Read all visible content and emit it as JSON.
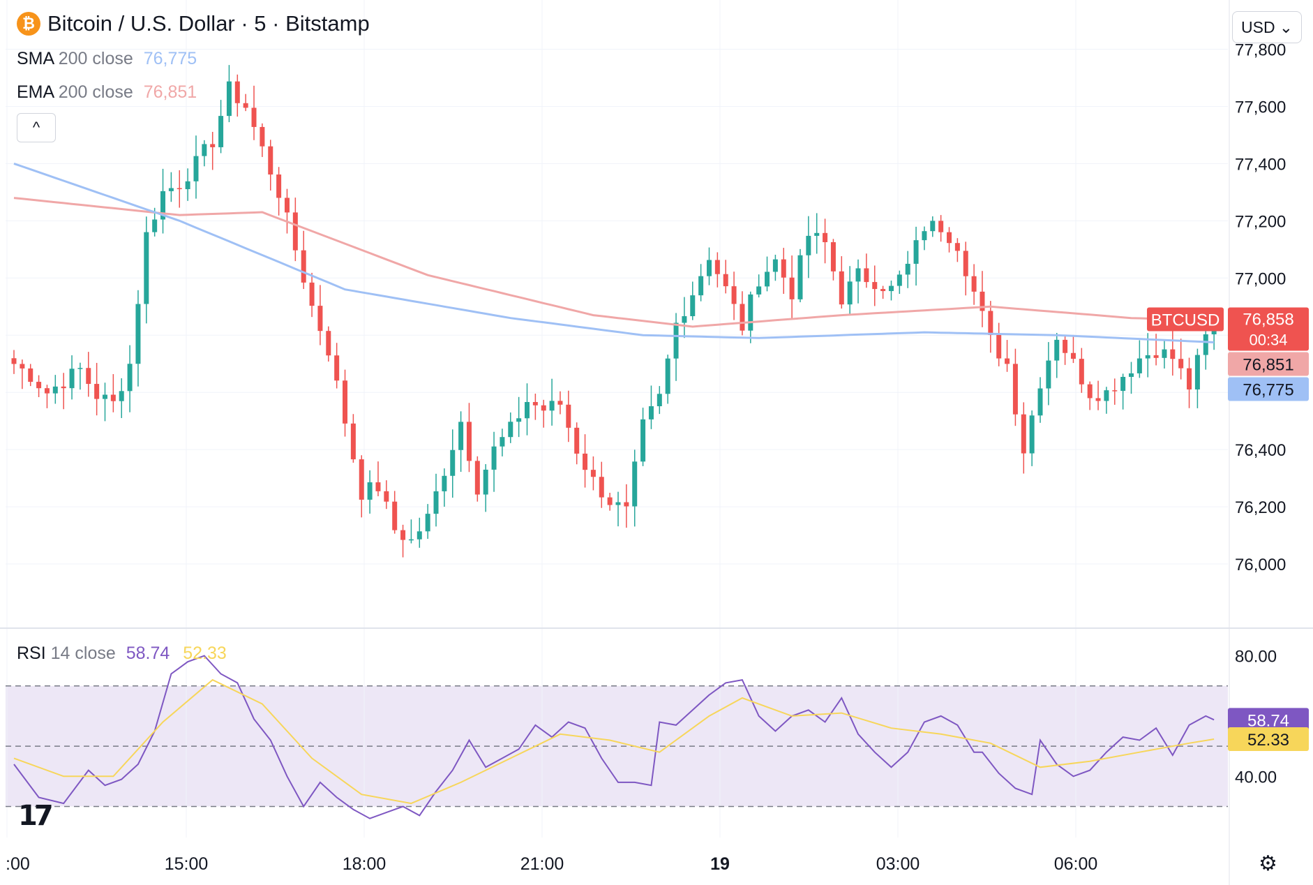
{
  "header": {
    "title": "Bitcoin / U.S. Dollar · 5 · Bitstamp",
    "coin_symbol": "₿",
    "currency": "USD",
    "currency_caret": "⌄"
  },
  "indicators": {
    "sma": {
      "label": "SMA",
      "params": "200 close",
      "value": "76,775"
    },
    "ema": {
      "label": "EMA",
      "params": "200 close",
      "value": "76,851"
    },
    "rsi": {
      "label": "RSI",
      "params": "14 close",
      "value": "58.74",
      "ma_value": "52.33"
    },
    "collapse_icon": "^"
  },
  "colors": {
    "up": "#26a69a",
    "down": "#ef5350",
    "sma": "#9fc0f5",
    "ema": "#f0a7a7",
    "rsi": "#7e57c2",
    "rsi_ma": "#f7d65a",
    "rsi_band": "#ede7f6"
  },
  "badges": {
    "symbol": "BTCUSD",
    "price": "76,858",
    "countdown": "00:34",
    "ema": "76,851",
    "sma": "76,775",
    "rsi": "58.74",
    "rsi_ma": "52.33"
  },
  "chart_data": [
    {
      "type": "candlestick",
      "title": "Bitcoin / U.S. Dollar · 5 · Bitstamp",
      "ylim": [
        75800,
        77850
      ],
      "y_ticks": [
        76000,
        76200,
        76400,
        76600,
        76800,
        77000,
        77200,
        77400,
        77600,
        77800
      ],
      "y_tick_labels": [
        "76,000",
        "76,200",
        "76,400",
        "",
        "",
        "77,000",
        "77,200",
        "77,400",
        "77,600",
        "77,800"
      ],
      "x_tick_labels": [
        ":00",
        "15:00",
        "18:00",
        "21:00",
        "19",
        "03:00",
        "06:00"
      ],
      "grid": true,
      "close_points": [
        [
          0,
          76700
        ],
        [
          2,
          76660
        ],
        [
          4,
          76600
        ],
        [
          6,
          76640
        ],
        [
          8,
          76680
        ],
        [
          10,
          76590
        ],
        [
          12,
          76560
        ],
        [
          14,
          76700
        ],
        [
          16,
          77150
        ],
        [
          18,
          77300
        ],
        [
          20,
          77330
        ],
        [
          22,
          77400
        ],
        [
          24,
          77480
        ],
        [
          26,
          77660
        ],
        [
          28,
          77600
        ],
        [
          30,
          77450
        ],
        [
          32,
          77300
        ],
        [
          34,
          77100
        ],
        [
          36,
          76900
        ],
        [
          38,
          76750
        ],
        [
          40,
          76500
        ],
        [
          42,
          76250
        ],
        [
          44,
          76270
        ],
        [
          46,
          76120
        ],
        [
          48,
          76080
        ],
        [
          50,
          76160
        ],
        [
          52,
          76330
        ],
        [
          54,
          76500
        ],
        [
          56,
          76270
        ],
        [
          58,
          76400
        ],
        [
          60,
          76470
        ],
        [
          62,
          76570
        ],
        [
          64,
          76540
        ],
        [
          66,
          76560
        ],
        [
          68,
          76400
        ],
        [
          70,
          76290
        ],
        [
          72,
          76220
        ],
        [
          74,
          76180
        ],
        [
          76,
          76480
        ],
        [
          78,
          76580
        ],
        [
          80,
          76840
        ],
        [
          82,
          76950
        ],
        [
          84,
          77080
        ],
        [
          86,
          76960
        ],
        [
          88,
          76830
        ],
        [
          90,
          77000
        ],
        [
          92,
          77060
        ],
        [
          94,
          76950
        ],
        [
          96,
          77150
        ],
        [
          98,
          77120
        ],
        [
          100,
          76930
        ],
        [
          102,
          77010
        ],
        [
          104,
          76990
        ],
        [
          106,
          76960
        ],
        [
          108,
          77040
        ],
        [
          110,
          77180
        ],
        [
          112,
          77180
        ],
        [
          114,
          77120
        ],
        [
          116,
          76950
        ],
        [
          118,
          76780
        ],
        [
          120,
          76700
        ],
        [
          122,
          76400
        ],
        [
          124,
          76640
        ],
        [
          126,
          76800
        ],
        [
          128,
          76700
        ],
        [
          130,
          76600
        ],
        [
          132,
          76600
        ],
        [
          134,
          76660
        ],
        [
          136,
          76720
        ],
        [
          138,
          76750
        ],
        [
          140,
          76720
        ],
        [
          142,
          76620
        ],
        [
          144,
          76790
        ],
        [
          145,
          76858
        ]
      ],
      "candles_note_count": 146
    },
    {
      "type": "line",
      "title": "RSI 14 close",
      "ylim": [
        22,
        88
      ],
      "y_ticks": [
        40,
        80
      ],
      "y_tick_labels": [
        "40.00",
        "80.00"
      ],
      "bands": [
        30,
        50,
        70
      ],
      "series": [
        {
          "name": "RSI",
          "values": [
            [
              0,
              44
            ],
            [
              3,
              33
            ],
            [
              6,
              31
            ],
            [
              9,
              42
            ],
            [
              11,
              37
            ],
            [
              13,
              39
            ],
            [
              15,
              44
            ],
            [
              17,
              55
            ],
            [
              19,
              74
            ],
            [
              21,
              78
            ],
            [
              23,
              80
            ],
            [
              25,
              74
            ],
            [
              27,
              71
            ],
            [
              29,
              59
            ],
            [
              31,
              52
            ],
            [
              33,
              40
            ],
            [
              35,
              30
            ],
            [
              37,
              38
            ],
            [
              39,
              33
            ],
            [
              41,
              29
            ],
            [
              43,
              26
            ],
            [
              45,
              28
            ],
            [
              47,
              30
            ],
            [
              49,
              27
            ],
            [
              51,
              35
            ],
            [
              53,
              42
            ],
            [
              55,
              52
            ],
            [
              57,
              43
            ],
            [
              59,
              46
            ],
            [
              61,
              49
            ],
            [
              63,
              57
            ],
            [
              65,
              53
            ],
            [
              67,
              58
            ],
            [
              69,
              56
            ],
            [
              71,
              46
            ],
            [
              73,
              38
            ],
            [
              75,
              38
            ],
            [
              77,
              37
            ],
            [
              78,
              58
            ],
            [
              80,
              57
            ],
            [
              82,
              62
            ],
            [
              84,
              67
            ],
            [
              86,
              71
            ],
            [
              88,
              72
            ],
            [
              90,
              60
            ],
            [
              92,
              55
            ],
            [
              94,
              60
            ],
            [
              96,
              62
            ],
            [
              98,
              58
            ],
            [
              100,
              66
            ],
            [
              102,
              54
            ],
            [
              104,
              48
            ],
            [
              106,
              43
            ],
            [
              108,
              48
            ],
            [
              110,
              58
            ],
            [
              112,
              60
            ],
            [
              114,
              57
            ],
            [
              116,
              48
            ],
            [
              117,
              48
            ],
            [
              119,
              41
            ],
            [
              121,
              36
            ],
            [
              123,
              34
            ],
            [
              124,
              52
            ],
            [
              126,
              44
            ],
            [
              128,
              40
            ],
            [
              130,
              42
            ],
            [
              132,
              48
            ],
            [
              134,
              53
            ],
            [
              136,
              52
            ],
            [
              138,
              56
            ],
            [
              140,
              47
            ],
            [
              142,
              57
            ],
            [
              144,
              60
            ],
            [
              145,
              58.74
            ]
          ]
        },
        {
          "name": "RSI-based MA",
          "values": [
            [
              0,
              46
            ],
            [
              6,
              40
            ],
            [
              12,
              40
            ],
            [
              18,
              58
            ],
            [
              24,
              72
            ],
            [
              30,
              64
            ],
            [
              36,
              46
            ],
            [
              42,
              34
            ],
            [
              48,
              31
            ],
            [
              54,
              38
            ],
            [
              60,
              46
            ],
            [
              66,
              54
            ],
            [
              72,
              52
            ],
            [
              78,
              48
            ],
            [
              84,
              60
            ],
            [
              88,
              66
            ],
            [
              94,
              60
            ],
            [
              100,
              61
            ],
            [
              106,
              56
            ],
            [
              112,
              54
            ],
            [
              118,
              51
            ],
            [
              124,
              43
            ],
            [
              130,
              45
            ],
            [
              136,
              48
            ],
            [
              142,
              51
            ],
            [
              145,
              52.33
            ]
          ]
        }
      ]
    }
  ]
}
